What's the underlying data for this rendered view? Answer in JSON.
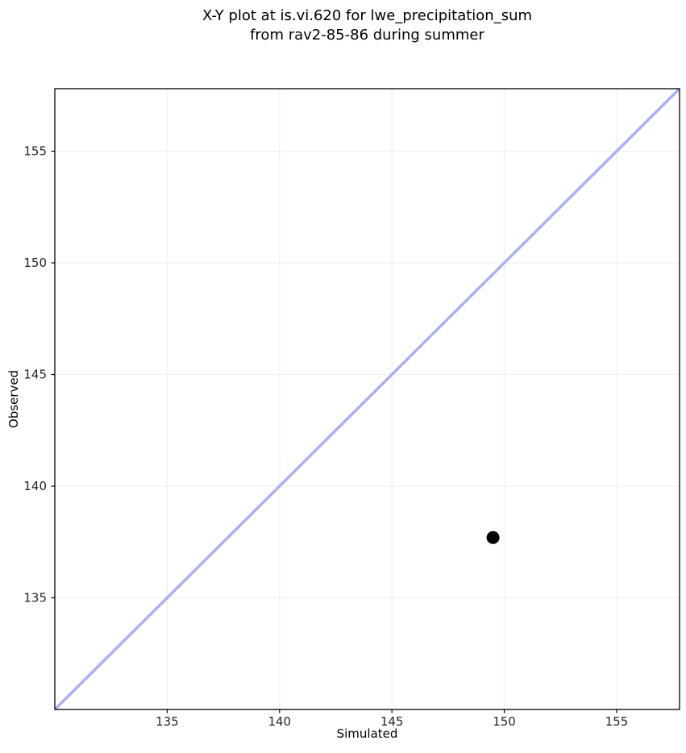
{
  "chart_data": {
    "type": "scatter",
    "title": "X-Y plot at is.vi.620 for lwe_precipitation_sum\nfrom rav2-85-86 during summer",
    "xlabel": "Simulated",
    "ylabel": "Observed",
    "xlim": [
      130.0,
      157.8
    ],
    "ylim": [
      130.0,
      157.8
    ],
    "xticks": [
      135,
      140,
      145,
      150,
      155
    ],
    "yticks": [
      135,
      140,
      145,
      150,
      155
    ],
    "grid": true,
    "legend": "none",
    "series": [
      {
        "name": "identity-line",
        "type": "line",
        "x": [
          130.0,
          157.8
        ],
        "y": [
          130.0,
          157.8
        ],
        "color": "#aab0f2",
        "width": 3.5
      },
      {
        "name": "data-point",
        "type": "scatter",
        "x": [
          149.5
        ],
        "y": [
          137.7
        ],
        "color": "#000000",
        "marker_size": 16
      }
    ],
    "colors": {
      "grid": "#f0f0f0",
      "spine": "#000000",
      "text": "#262626",
      "background": "#ffffff"
    }
  }
}
